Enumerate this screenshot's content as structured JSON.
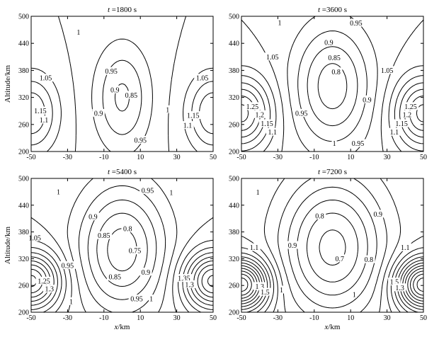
{
  "chart_data": [
    {
      "type": "contour",
      "title_var": "t",
      "title_rest": "=1800 s",
      "xlabel": "",
      "ylabel": "Altitude/km",
      "xlim": [
        -50,
        50
      ],
      "ylim": [
        200,
        500
      ],
      "xticks": [
        "-50",
        "-30",
        "-10",
        "10",
        "30",
        "50"
      ],
      "yticks": [
        "200",
        "260",
        "320",
        "380",
        "440",
        "500"
      ],
      "contour_labels": [
        {
          "text": "1",
          "x": -24,
          "y": 465
        },
        {
          "text": "0.95",
          "x": -6,
          "y": 378
        },
        {
          "text": "0.9",
          "x": -4,
          "y": 337
        },
        {
          "text": "0.85",
          "x": 5,
          "y": 325
        },
        {
          "text": "0.9",
          "x": -13,
          "y": 285
        },
        {
          "text": "0.95",
          "x": 10,
          "y": 225
        },
        {
          "text": "1",
          "x": 25,
          "y": 293
        },
        {
          "text": "1.05",
          "x": -42,
          "y": 363
        },
        {
          "text": "1.15",
          "x": -45,
          "y": 290
        },
        {
          "text": "1.1",
          "x": -43,
          "y": 270
        },
        {
          "text": "1.05",
          "x": 44,
          "y": 363
        },
        {
          "text": "1.15",
          "x": 39,
          "y": 280
        },
        {
          "text": "1.1",
          "x": 36,
          "y": 258
        }
      ]
    },
    {
      "type": "contour",
      "title_var": "t",
      "title_rest": "=3600 s",
      "xlabel": "",
      "ylabel": "",
      "xlim": [
        -50,
        50
      ],
      "ylim": [
        200,
        500
      ],
      "xticks": [
        "-50",
        "-30",
        "-10",
        "10",
        "30",
        "50"
      ],
      "yticks": [
        "200",
        "260",
        "320",
        "380",
        "440",
        "500"
      ],
      "contour_labels": [
        {
          "text": "1",
          "x": -29,
          "y": 486
        },
        {
          "text": "0.95",
          "x": 13,
          "y": 485
        },
        {
          "text": "0.9",
          "x": -2,
          "y": 442
        },
        {
          "text": "0.85",
          "x": 1,
          "y": 408
        },
        {
          "text": "0.8",
          "x": 2,
          "y": 377
        },
        {
          "text": "1.05",
          "x": -33,
          "y": 410
        },
        {
          "text": "1.05",
          "x": 30,
          "y": 380
        },
        {
          "text": "0.95",
          "x": -17,
          "y": 285
        },
        {
          "text": "0.9",
          "x": 19,
          "y": 315
        },
        {
          "text": "0.95",
          "x": 14,
          "y": 218
        },
        {
          "text": "1",
          "x": 1,
          "y": 218
        },
        {
          "text": "1.25",
          "x": -44,
          "y": 300
        },
        {
          "text": "1.2",
          "x": -40,
          "y": 282
        },
        {
          "text": "1.15",
          "x": -36,
          "y": 262
        },
        {
          "text": "1.1",
          "x": -33,
          "y": 243
        },
        {
          "text": "1.25",
          "x": 43,
          "y": 300
        },
        {
          "text": "1.2",
          "x": 41,
          "y": 282
        },
        {
          "text": "1.15",
          "x": 38,
          "y": 262
        },
        {
          "text": "1.1",
          "x": 34,
          "y": 243
        }
      ]
    },
    {
      "type": "contour",
      "title_var": "t",
      "title_rest": "=5400 s",
      "xlabel": "x/km",
      "ylabel": "Altitude/km",
      "xlim": [
        -50,
        50
      ],
      "ylim": [
        200,
        500
      ],
      "xticks": [
        "-50",
        "-30",
        "-10",
        "10",
        "30",
        "50"
      ],
      "yticks": [
        "200",
        "260",
        "320",
        "380",
        "440",
        "500"
      ],
      "contour_labels": [
        {
          "text": "1",
          "x": -35,
          "y": 470
        },
        {
          "text": "1",
          "x": 27,
          "y": 468
        },
        {
          "text": "0.95",
          "x": 14,
          "y": 473
        },
        {
          "text": "0.9",
          "x": -16,
          "y": 414
        },
        {
          "text": "0.85",
          "x": -10,
          "y": 372
        },
        {
          "text": "0.8",
          "x": 3,
          "y": 387
        },
        {
          "text": "0.75",
          "x": 7,
          "y": 338
        },
        {
          "text": "1.05",
          "x": -48,
          "y": 367
        },
        {
          "text": "0.95",
          "x": -30,
          "y": 305
        },
        {
          "text": "0.85",
          "x": -4,
          "y": 279
        },
        {
          "text": "0.9",
          "x": 13,
          "y": 290
        },
        {
          "text": "0.95",
          "x": 8,
          "y": 230
        },
        {
          "text": "1",
          "x": 16,
          "y": 230
        },
        {
          "text": "1",
          "x": -28,
          "y": 224
        },
        {
          "text": "1.25",
          "x": -43,
          "y": 270
        },
        {
          "text": "1.3",
          "x": -40,
          "y": 252
        },
        {
          "text": "1.35",
          "x": 34,
          "y": 276
        },
        {
          "text": "1.3",
          "x": 37,
          "y": 262
        }
      ]
    },
    {
      "type": "contour",
      "title_var": "t",
      "title_rest": "=7200 s",
      "xlabel": "x/km",
      "ylabel": "",
      "xlim": [
        -50,
        50
      ],
      "ylim": [
        200,
        500
      ],
      "xticks": [
        "-50",
        "-30",
        "-10",
        "10",
        "30",
        "50"
      ],
      "yticks": [
        "200",
        "260",
        "320",
        "380",
        "440",
        "500"
      ],
      "contour_labels": [
        {
          "text": "1",
          "x": -41,
          "y": 469
        },
        {
          "text": "0.8",
          "x": -7,
          "y": 416
        },
        {
          "text": "0.9",
          "x": 25,
          "y": 420
        },
        {
          "text": "0.9",
          "x": -22,
          "y": 350
        },
        {
          "text": "0.7",
          "x": 4,
          "y": 320
        },
        {
          "text": "0.8",
          "x": 20,
          "y": 318
        },
        {
          "text": "1.1",
          "x": -43,
          "y": 345
        },
        {
          "text": "1.1",
          "x": 40,
          "y": 345
        },
        {
          "text": "1",
          "x": 12,
          "y": 240
        },
        {
          "text": "1",
          "x": -28,
          "y": 250
        },
        {
          "text": "1.3",
          "x": -40,
          "y": 258
        },
        {
          "text": "1.5",
          "x": -37,
          "y": 245
        },
        {
          "text": "1.5",
          "x": 34,
          "y": 268
        },
        {
          "text": "1.3",
          "x": 37,
          "y": 255
        }
      ]
    }
  ]
}
